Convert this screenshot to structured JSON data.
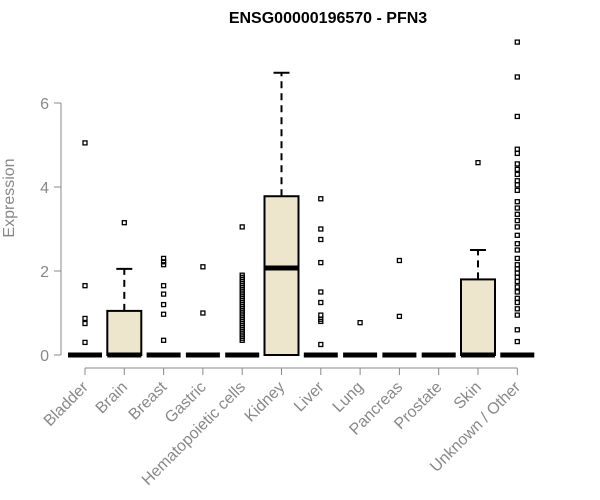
{
  "chart_data": {
    "type": "boxplot",
    "title": "ENSG00000196570 - PFN3",
    "ylabel": "Expression",
    "xlabel": "",
    "ylim": [
      0,
      7.5
    ],
    "yticks": [
      0,
      2,
      4,
      6
    ],
    "box_fill": "#ede6cc",
    "categories": [
      "Bladder",
      "Brain",
      "Breast",
      "Gastric",
      "Hematopoietic cells",
      "Kidney",
      "Liver",
      "Lung",
      "Pancreas",
      "Prostate",
      "Skin",
      "Unknown / Other"
    ],
    "boxes": [
      {
        "category": "Bladder",
        "min": 0,
        "q1": 0,
        "median": 0,
        "q3": 0,
        "max": 0,
        "outliers": [
          5.05,
          1.65,
          0.87,
          0.75,
          0.3
        ]
      },
      {
        "category": "Brain",
        "min": 0,
        "q1": 0,
        "median": 0,
        "q3": 1.05,
        "max": 2.05,
        "outliers": [
          3.15
        ]
      },
      {
        "category": "Breast",
        "min": 0,
        "q1": 0,
        "median": 0,
        "q3": 0,
        "max": 0,
        "outliers": [
          2.3,
          2.22,
          2.15,
          1.65,
          1.45,
          1.2,
          0.97,
          0.35
        ]
      },
      {
        "category": "Gastric",
        "min": 0,
        "q1": 0,
        "median": 0,
        "q3": 0,
        "max": 0,
        "outliers": [
          2.1,
          1.0
        ]
      },
      {
        "category": "Hematopoietic cells",
        "min": 0,
        "q1": 0,
        "median": 0,
        "q3": 0,
        "max": 0,
        "outliers": [
          3.05,
          1.9,
          1.85,
          1.8,
          1.75,
          1.7,
          1.65,
          1.6,
          1.55,
          1.5,
          1.45,
          1.4,
          1.35,
          1.3,
          1.25,
          1.2,
          1.15,
          1.1,
          1.05,
          1.0,
          0.95,
          0.9,
          0.85,
          0.8,
          0.75,
          0.7,
          0.65,
          0.6,
          0.55,
          0.5,
          0.45,
          0.4,
          0.35
        ]
      },
      {
        "category": "Kidney",
        "min": 0,
        "q1": 0,
        "median": 2.07,
        "q3": 3.78,
        "max": 6.72,
        "outliers": []
      },
      {
        "category": "Liver",
        "min": 0,
        "q1": 0,
        "median": 0,
        "q3": 0,
        "max": 0,
        "outliers": [
          3.72,
          3.0,
          2.75,
          2.2,
          1.5,
          1.25,
          0.95,
          0.85,
          0.8,
          0.25
        ]
      },
      {
        "category": "Lung",
        "min": 0,
        "q1": 0,
        "median": 0,
        "q3": 0,
        "max": 0,
        "outliers": [
          0.77
        ]
      },
      {
        "category": "Pancreas",
        "min": 0,
        "q1": 0,
        "median": 0,
        "q3": 0,
        "max": 0,
        "outliers": [
          2.25,
          0.92
        ]
      },
      {
        "category": "Prostate",
        "min": 0,
        "q1": 0,
        "median": 0,
        "q3": 0,
        "max": 0,
        "outliers": []
      },
      {
        "category": "Skin",
        "min": 0,
        "q1": 0,
        "median": 0,
        "q3": 1.8,
        "max": 2.5,
        "outliers": [
          4.58
        ]
      },
      {
        "category": "Unknown / Other",
        "min": 0,
        "q1": 0,
        "median": 0,
        "q3": 0,
        "max": 0,
        "outliers": [
          7.45,
          6.62,
          5.68,
          4.9,
          4.8,
          4.55,
          4.42,
          4.3,
          4.15,
          4.05,
          3.92,
          3.65,
          3.5,
          3.35,
          3.2,
          3.05,
          2.85,
          2.65,
          2.5,
          2.3,
          2.15,
          2.05,
          1.95,
          1.85,
          1.75,
          1.62,
          1.5,
          1.35,
          1.25,
          1.1,
          0.95,
          0.6,
          0.32
        ]
      }
    ]
  }
}
